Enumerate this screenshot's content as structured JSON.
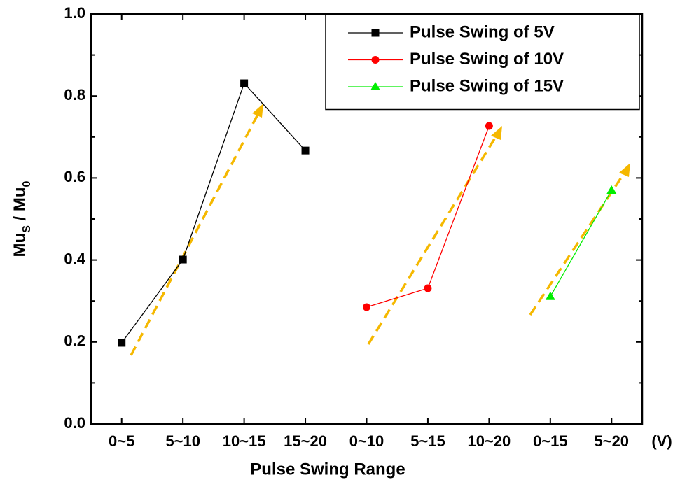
{
  "chart_data": {
    "type": "line",
    "xlabel": "Pulse Swing Range",
    "x_unit": "(V)",
    "ylabel": [
      {
        "text": "Mu"
      },
      {
        "text": "S",
        "sub": true
      },
      {
        "text": " / Mu"
      },
      {
        "text": "0",
        "sub": true
      }
    ],
    "categories": [
      "0~5",
      "5~10",
      "10~15",
      "15~20",
      "0~10",
      "5~15",
      "10~20",
      "0~15",
      "5~20"
    ],
    "series": [
      {
        "name": "Pulse Swing of 5V",
        "color": "#000000",
        "marker": "square",
        "values": [
          0.198,
          0.401,
          0.831,
          0.667,
          null,
          null,
          null,
          null,
          null
        ]
      },
      {
        "name": "Pulse Swing of 10V",
        "color": "#ff0000",
        "marker": "circle",
        "values": [
          null,
          null,
          null,
          null,
          0.285,
          0.331,
          0.727,
          null,
          null
        ]
      },
      {
        "name": "Pulse Swing of 15V",
        "color": "#00ee00",
        "marker": "triangle",
        "values": [
          null,
          null,
          null,
          null,
          null,
          null,
          null,
          0.311,
          0.57
        ]
      }
    ],
    "ylim": [
      0,
      1.0
    ],
    "yticks": [
      {
        "value": 0,
        "label": "0.0"
      },
      0.2,
      0.4,
      0.6,
      0.8,
      {
        "value": 1.0,
        "label": "1.0"
      }
    ],
    "minor_yticks": [
      0.1,
      0.3,
      0.5,
      0.7,
      0.9
    ],
    "legend": "upper right"
  }
}
